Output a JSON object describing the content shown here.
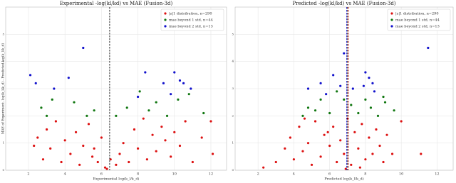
{
  "chart_data": [
    {
      "type": "scatter",
      "title": "Experimental -log(kl/kd) vs MAE (Fusion-3d)",
      "xlabel": "Experimental log(k_l/k_d)",
      "ylabel": "MAE of Experiment. log(k_l/k_d) - Predicted log(k_l/k_d)",
      "xlim": [
        0.75,
        12.86
      ],
      "ylim": [
        0,
        6
      ],
      "xticks": [
        2,
        4,
        6,
        8,
        10,
        12
      ],
      "yticks": [
        0,
        1,
        2,
        3,
        4,
        5
      ],
      "grid": true,
      "legend": "upper right",
      "vlines": [
        {
          "value": 6.45,
          "color": "#000000"
        }
      ],
      "series": [
        {
          "name": "|z|1 distribution, n=290",
          "color": "#dd1111",
          "x": [
            2.3,
            2.5,
            2.8,
            3.0,
            3.2,
            3.5,
            3.8,
            4.0,
            4.3,
            4.6,
            4.8,
            5.0,
            5.3,
            5.5,
            5.8,
            6.0,
            6.2,
            6.5,
            6.8,
            7.0,
            7.2,
            7.5,
            7.8,
            8.0,
            8.3,
            8.5,
            8.8,
            9.0,
            9.3,
            9.5,
            9.8,
            10.0,
            10.3,
            10.6,
            11.0,
            11.5,
            12.0,
            12.1,
            6.3,
            5.6
          ],
          "values": [
            0.9,
            1.2,
            0.4,
            1.5,
            0.8,
            1.8,
            0.3,
            1.1,
            0.6,
            1.4,
            0.2,
            0.9,
            1.7,
            0.5,
            0.3,
            1.2,
            0.1,
            0.4,
            0.2,
            0.6,
            1.0,
            0.3,
            1.5,
            0.8,
            1.9,
            0.4,
            1.3,
            0.7,
            1.6,
            1.1,
            0.5,
            1.4,
            0.9,
            1.8,
            0.3,
            1.2,
            1.8,
            0.6,
            0.05,
            0.8
          ]
        },
        {
          "name": "mae beyond 1 std, n=44",
          "color": "#117711",
          "x": [
            2.7,
            3.0,
            3.3,
            4.5,
            5.2,
            5.6,
            6.8,
            7.4,
            8.1,
            8.6,
            9.0,
            9.6,
            10.2,
            10.8,
            11.6
          ],
          "values": [
            2.3,
            2.0,
            2.6,
            2.5,
            2.0,
            2.2,
            2.0,
            2.3,
            2.9,
            2.2,
            2.5,
            2.0,
            2.6,
            2.8,
            2.1
          ]
        },
        {
          "name": "mae beyond 2 std, n=13",
          "color": "#1111cc",
          "x": [
            2.1,
            2.4,
            3.4,
            4.2,
            5.0,
            8.0,
            8.4,
            9.4,
            9.8,
            10.0,
            10.3,
            10.5,
            10.9
          ],
          "values": [
            3.5,
            3.2,
            3.0,
            3.4,
            4.5,
            2.7,
            3.6,
            3.2,
            2.8,
            3.6,
            3.3,
            3.2,
            3.0
          ]
        }
      ]
    },
    {
      "type": "scatter",
      "title": "Predicted -log(kl/kd) vs MAE (Fusion-3d)",
      "xlabel": "Predicted log(k_l/k_d)",
      "xlim": [
        0.72,
        12.9
      ],
      "ylim": [
        0,
        6
      ],
      "xticks": [
        2,
        4,
        6,
        8,
        10,
        12
      ],
      "yticks": [
        0,
        1,
        2,
        3,
        4,
        5
      ],
      "grid": true,
      "legend": "upper right",
      "vlines": [
        {
          "value": 6.95,
          "color": "#1111cc"
        },
        {
          "value": 7.0,
          "color": "#000000"
        },
        {
          "value": 7.05,
          "color": "#dd1111"
        }
      ],
      "series": [
        {
          "name": "|z|1 distribution, n=290",
          "color": "#dd1111",
          "x": [
            2.3,
            3.0,
            3.5,
            3.8,
            4.0,
            4.3,
            4.5,
            4.8,
            5.0,
            5.2,
            5.5,
            5.7,
            6.0,
            6.2,
            6.4,
            6.6,
            6.8,
            7.0,
            7.2,
            7.4,
            7.6,
            7.8,
            8.0,
            8.2,
            8.4,
            8.6,
            8.8,
            9.0,
            9.2,
            9.5,
            10.0,
            11.1,
            6.9,
            7.7,
            5.9,
            4.6
          ],
          "values": [
            0.1,
            0.3,
            0.8,
            1.2,
            0.4,
            1.6,
            0.7,
            1.0,
            0.2,
            1.8,
            0.5,
            1.3,
            0.9,
            1.6,
            0.3,
            1.1,
            0.6,
            1.9,
            0.2,
            1.4,
            0.8,
            1.7,
            0.4,
            1.2,
            0.6,
            1.5,
            0.9,
            0.3,
            1.3,
            0.6,
            1.8,
            0.6,
            0.05,
            0.1,
            1.4,
            1.9
          ]
        },
        {
          "name": "mae beyond 1 std, n=44",
          "color": "#117711",
          "x": [
            4.5,
            4.8,
            5.5,
            6.0,
            6.4,
            7.2,
            7.6,
            8.0,
            8.3,
            8.7,
            9.0,
            9.6,
            9.1,
            5.2,
            6.8
          ],
          "values": [
            2.0,
            2.3,
            2.6,
            2.1,
            2.9,
            2.4,
            2.1,
            2.6,
            2.3,
            2.0,
            2.7,
            2.2,
            2.5,
            2.2,
            2.6
          ]
        },
        {
          "name": "mae beyond 2 std, n=13",
          "color": "#1111cc",
          "x": [
            4.8,
            5.5,
            6.2,
            6.6,
            6.8,
            7.3,
            7.9,
            8.0,
            8.2,
            8.4,
            8.5,
            11.5,
            5.8
          ],
          "values": [
            3.0,
            3.2,
            3.5,
            3.1,
            4.3,
            3.0,
            3.1,
            3.6,
            3.4,
            3.2,
            2.9,
            4.5,
            2.8
          ]
        }
      ]
    }
  ]
}
